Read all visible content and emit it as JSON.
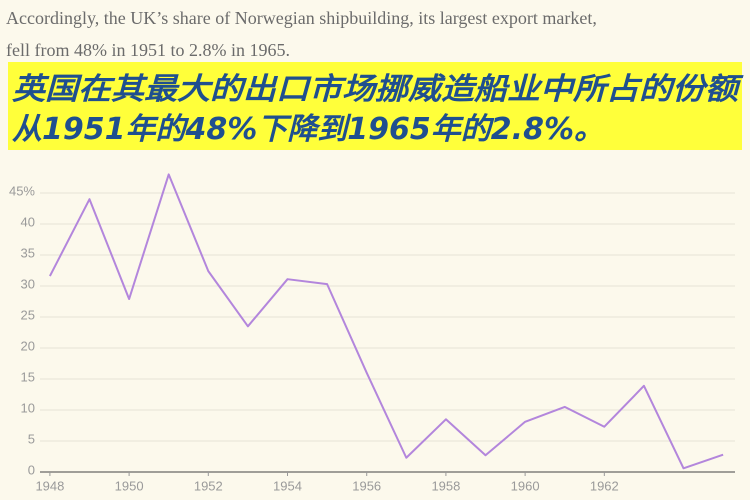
{
  "article": {
    "paragraph_lines": [
      "Accordingly, the UK’s share of Norwegian shipbuilding, its largest export market,",
      "fell from 48% in 1951 to 2.8% in 1965."
    ],
    "caption_lines": [
      "英国在其最大的出口市场挪威造船业中所占的份额",
      "从1951年的48%下降到1965年的2.8%。"
    ]
  },
  "chart_data": {
    "type": "line",
    "x": [
      1948,
      1949,
      1950,
      1951,
      1952,
      1953,
      1954,
      1955,
      1956,
      1957,
      1958,
      1959,
      1960,
      1961,
      1962,
      1963,
      1964,
      1965
    ],
    "series": [
      {
        "color": "#b386dc",
        "values": [
          31.6,
          44.0,
          27.9,
          48,
          32.4,
          23.5,
          31.1,
          30.3,
          16,
          2.3,
          8.5,
          2.7,
          8.1,
          10.5,
          7.3,
          13.9,
          0.6,
          2.8
        ]
      }
    ],
    "xlim": [
      1947.75,
      1965.3
    ],
    "ylim": [
      0,
      50
    ],
    "xticks": [
      1948,
      1950,
      1952,
      1954,
      1956,
      1958,
      1960,
      1962
    ],
    "yticks": [
      0,
      5,
      10,
      15,
      20,
      25,
      30,
      35,
      40,
      {
        "value": 45,
        "label": "45%"
      }
    ],
    "grid": true
  }
}
